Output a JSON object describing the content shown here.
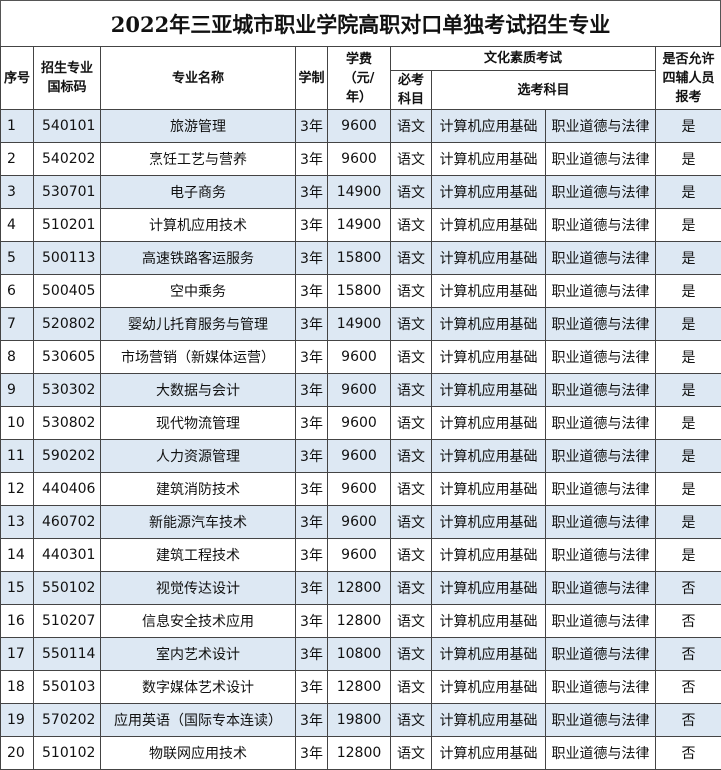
{
  "title": "2022年三亚城市职业学院高职对口单独考试招生专业",
  "headers": {
    "seq": "序号",
    "code": "招生专业国标码",
    "name": "专业名称",
    "duration": "学制",
    "fee": "学费（元/年）",
    "exam_group": "文化素质考试",
    "required": "必考科目",
    "elective": "选考科目",
    "allowed": "是否允许四辅人员报考"
  },
  "colors": {
    "odd_row": "#dde8f3",
    "even_row": "#ffffff"
  },
  "rows": [
    [
      "1",
      "540101",
      "旅游管理",
      "3年",
      "9600",
      "语文",
      "计算机应用基础",
      "职业道德与法律",
      "是"
    ],
    [
      "2",
      "540202",
      "烹饪工艺与营养",
      "3年",
      "9600",
      "语文",
      "计算机应用基础",
      "职业道德与法律",
      "是"
    ],
    [
      "3",
      "530701",
      "电子商务",
      "3年",
      "14900",
      "语文",
      "计算机应用基础",
      "职业道德与法律",
      "是"
    ],
    [
      "4",
      "510201",
      "计算机应用技术",
      "3年",
      "14900",
      "语文",
      "计算机应用基础",
      "职业道德与法律",
      "是"
    ],
    [
      "5",
      "500113",
      "高速铁路客运服务",
      "3年",
      "15800",
      "语文",
      "计算机应用基础",
      "职业道德与法律",
      "是"
    ],
    [
      "6",
      "500405",
      "空中乘务",
      "3年",
      "15800",
      "语文",
      "计算机应用基础",
      "职业道德与法律",
      "是"
    ],
    [
      "7",
      "520802",
      "婴幼儿托育服务与管理",
      "3年",
      "14900",
      "语文",
      "计算机应用基础",
      "职业道德与法律",
      "是"
    ],
    [
      "8",
      "530605",
      "市场营销（新媒体运营）",
      "3年",
      "9600",
      "语文",
      "计算机应用基础",
      "职业道德与法律",
      "是"
    ],
    [
      "9",
      "530302",
      "大数据与会计",
      "3年",
      "9600",
      "语文",
      "计算机应用基础",
      "职业道德与法律",
      "是"
    ],
    [
      "10",
      "530802",
      "现代物流管理",
      "3年",
      "9600",
      "语文",
      "计算机应用基础",
      "职业道德与法律",
      "是"
    ],
    [
      "11",
      "590202",
      "人力资源管理",
      "3年",
      "9600",
      "语文",
      "计算机应用基础",
      "职业道德与法律",
      "是"
    ],
    [
      "12",
      "440406",
      "建筑消防技术",
      "3年",
      "9600",
      "语文",
      "计算机应用基础",
      "职业道德与法律",
      "是"
    ],
    [
      "13",
      "460702",
      "新能源汽车技术",
      "3年",
      "9600",
      "语文",
      "计算机应用基础",
      "职业道德与法律",
      "是"
    ],
    [
      "14",
      "440301",
      "建筑工程技术",
      "3年",
      "9600",
      "语文",
      "计算机应用基础",
      "职业道德与法律",
      "是"
    ],
    [
      "15",
      "550102",
      "视觉传达设计",
      "3年",
      "12800",
      "语文",
      "计算机应用基础",
      "职业道德与法律",
      "否"
    ],
    [
      "16",
      "510207",
      "信息安全技术应用",
      "3年",
      "12800",
      "语文",
      "计算机应用基础",
      "职业道德与法律",
      "否"
    ],
    [
      "17",
      "550114",
      "室内艺术设计",
      "3年",
      "10800",
      "语文",
      "计算机应用基础",
      "职业道德与法律",
      "否"
    ],
    [
      "18",
      "550103",
      "数字媒体艺术设计",
      "3年",
      "12800",
      "语文",
      "计算机应用基础",
      "职业道德与法律",
      "否"
    ],
    [
      "19",
      "570202",
      "应用英语（国际专本连读）",
      "3年",
      "19800",
      "语文",
      "计算机应用基础",
      "职业道德与法律",
      "否"
    ],
    [
      "20",
      "510102",
      "物联网应用技术",
      "3年",
      "12800",
      "语文",
      "计算机应用基础",
      "职业道德与法律",
      "否"
    ]
  ]
}
